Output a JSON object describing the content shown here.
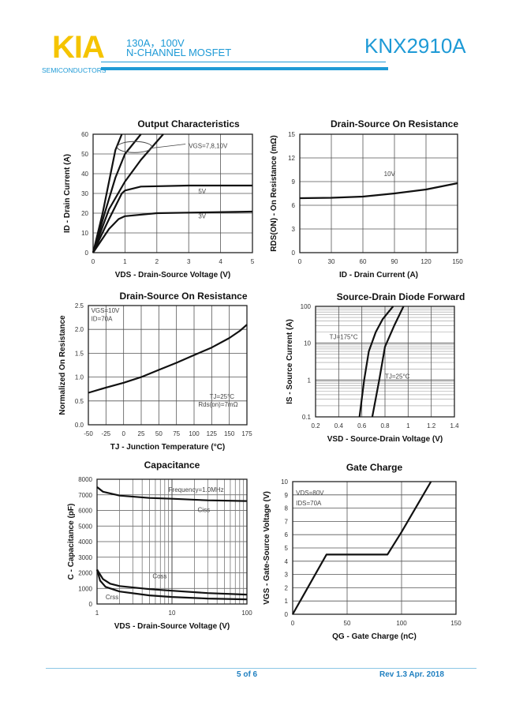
{
  "header": {
    "logo": "KIA",
    "logo_sub": "SEMICONDUCTORS",
    "spec_line1": "130A，100V",
    "spec_line2": "N-CHANNEL MOSFET",
    "part_number": "KNX2910A"
  },
  "footer": {
    "page": "5 of 6",
    "revision": "Rev 1.3 Apr. 2018"
  },
  "colors": {
    "brand_blue": "#1e9ad6",
    "brand_yellow": "#f5c400"
  },
  "chart_data": [
    {
      "type": "line",
      "title": "Output Characteristics",
      "xlabel": "VDS - Drain-Source Voltage (V)",
      "ylabel": "ID - Drain Current (A)",
      "xlim": [
        0,
        5
      ],
      "ylim": [
        0,
        60
      ],
      "xticks": [
        "0",
        "1",
        "2",
        "3",
        "4",
        "5"
      ],
      "yticks": [
        "0",
        "10",
        "20",
        "30",
        "40",
        "50",
        "60"
      ],
      "grid": true,
      "series": [
        {
          "name": "10V",
          "x": [
            0,
            0.3,
            0.5,
            0.7,
            0.9
          ],
          "y": [
            0,
            20,
            36,
            52,
            60
          ]
        },
        {
          "name": "8V",
          "x": [
            0,
            0.4,
            0.7,
            1,
            1.5
          ],
          "y": [
            0,
            22,
            38,
            50,
            60
          ]
        },
        {
          "name": "7V",
          "x": [
            0,
            0.5,
            1,
            1.5,
            2.2
          ],
          "y": [
            0,
            22,
            36,
            47,
            60
          ]
        },
        {
          "name": "5V",
          "x": [
            0,
            0.5,
            0.9,
            1,
            1.5,
            3,
            5
          ],
          "y": [
            0,
            17,
            30,
            31.5,
            33.5,
            34,
            34
          ]
        },
        {
          "name": "3V",
          "x": [
            0,
            0.5,
            0.8,
            1,
            2,
            5
          ],
          "y": [
            0,
            12,
            17,
            18.5,
            20,
            20.8
          ]
        }
      ],
      "annotations": [
        {
          "text": "VGS=7,8,10V",
          "x": 3,
          "y": 53
        },
        {
          "text": "5V",
          "x": 3.3,
          "y": 30
        },
        {
          "text": "3V",
          "x": 3.3,
          "y": 17.5
        }
      ]
    },
    {
      "type": "line",
      "title": "Drain-Source On Resistance",
      "xlabel": "ID - Drain Current (A)",
      "ylabel": "RDS(ON) - On Resistance (mΩ)",
      "xlim": [
        0,
        150
      ],
      "ylim": [
        0,
        15
      ],
      "xticks": [
        "0",
        "30",
        "60",
        "90",
        "120",
        "150"
      ],
      "yticks": [
        "0",
        "3",
        "6",
        "9",
        "12",
        "15"
      ],
      "grid": true,
      "series": [
        {
          "name": "10V",
          "x": [
            0,
            30,
            60,
            90,
            120,
            150
          ],
          "y": [
            6.9,
            6.95,
            7.1,
            7.5,
            8,
            8.8
          ]
        }
      ],
      "annotations": [
        {
          "text": "10V",
          "x": 80,
          "y": 9.7
        }
      ]
    },
    {
      "type": "line",
      "title": "Drain-Source On Resistance",
      "xlabel": "TJ - Junction Temperature (°C)",
      "ylabel": "Normalized On Resistance",
      "xlim": [
        -50,
        175
      ],
      "ylim": [
        0,
        2.5
      ],
      "xticks": [
        "-50",
        "-25",
        "0",
        "25",
        "50",
        "75",
        "100",
        "125",
        "150",
        "175"
      ],
      "yticks": [
        "0.0",
        "0.5",
        "1.0",
        "1.5",
        "2.0",
        "2.5"
      ],
      "grid": true,
      "series": [
        {
          "name": "Rds(on)",
          "x": [
            -50,
            -25,
            0,
            25,
            50,
            75,
            100,
            125,
            150,
            165,
            175
          ],
          "y": [
            0.67,
            0.78,
            0.88,
            1.0,
            1.15,
            1.3,
            1.46,
            1.62,
            1.82,
            1.97,
            2.1
          ]
        }
      ],
      "annotations": [
        {
          "text": "VGS=10V",
          "x": -46,
          "y": 2.35
        },
        {
          "text": "ID=70A",
          "x": -46,
          "y": 2.18
        },
        {
          "text": "TJ=25°C",
          "x": 122,
          "y": 0.55
        },
        {
          "text": "Rds(on)=7mΩ",
          "x": 106,
          "y": 0.38
        }
      ]
    },
    {
      "type": "line",
      "title": "Source-Drain Diode Forward",
      "xlabel": "VSD - Source-Drain Voltage (V)",
      "ylabel": "IS - Source Current (A)",
      "xlim": [
        0.2,
        1.4
      ],
      "ylim": [
        0.1,
        100
      ],
      "ylog": true,
      "xticks": [
        "0.2",
        "0.4",
        "0.6",
        "0.8",
        "1",
        "1.2",
        "1.4"
      ],
      "yticks": [
        "0.1",
        "1",
        "10",
        "100"
      ],
      "grid": true,
      "series": [
        {
          "name": "TJ=175°C",
          "x": [
            0.58,
            0.62,
            0.66,
            0.72,
            0.78,
            0.87
          ],
          "y": [
            0.1,
            1,
            6,
            20,
            45,
            100
          ]
        },
        {
          "name": "TJ=25°C",
          "x": [
            0.69,
            0.75,
            0.8,
            0.88,
            0.96
          ],
          "y": [
            0.1,
            1,
            8,
            30,
            100
          ]
        }
      ],
      "annotations": [
        {
          "text": "TJ=175°C",
          "x": 0.32,
          "y": 13
        },
        {
          "text": "TJ=25°C",
          "x": 0.8,
          "y": 1.1
        }
      ]
    },
    {
      "type": "line",
      "title": "Capacitance",
      "xlabel": "VDS - Drain-Source Voltage (V)",
      "ylabel": "C - Capacitance (pF)",
      "xlim": [
        1,
        100
      ],
      "ylim": [
        0,
        8000
      ],
      "xlog": true,
      "xticks": [
        "1",
        "10",
        "100"
      ],
      "yticks": [
        "0",
        "1000",
        "2000",
        "3000",
        "4000",
        "5000",
        "6000",
        "7000",
        "8000"
      ],
      "grid": true,
      "series": [
        {
          "name": "Ciss",
          "x": [
            1,
            1.2,
            2,
            5,
            10,
            30,
            100
          ],
          "y": [
            7500,
            7200,
            6950,
            6800,
            6750,
            6650,
            6600
          ]
        },
        {
          "name": "Coss",
          "x": [
            1,
            1.2,
            1.5,
            2,
            5,
            10,
            30,
            100
          ],
          "y": [
            2200,
            1600,
            1300,
            1150,
            950,
            850,
            700,
            600
          ]
        },
        {
          "name": "Crss",
          "x": [
            1,
            1.1,
            1.3,
            2,
            5,
            10,
            30,
            100
          ],
          "y": [
            2200,
            1500,
            1100,
            800,
            550,
            450,
            350,
            300
          ]
        }
      ],
      "annotations": [
        {
          "text": "Frequency=1.0MHz",
          "x": 9,
          "y": 7200
        },
        {
          "text": "Ciss",
          "x": 22,
          "y": 5900
        },
        {
          "text": "Coss",
          "x": 5.5,
          "y": 1650
        },
        {
          "text": "Crss",
          "x": 1.3,
          "y": 300
        }
      ]
    },
    {
      "type": "line",
      "title": "Gate Charge",
      "xlabel": "QG - Gate Charge (nC)",
      "ylabel": "VGS - Gate-Source Voltage (V)",
      "xlim": [
        0,
        150
      ],
      "ylim": [
        0,
        10
      ],
      "xticks": [
        "0",
        "50",
        "100",
        "150"
      ],
      "yticks": [
        "0",
        "1",
        "2",
        "3",
        "4",
        "5",
        "6",
        "7",
        "8",
        "9",
        "10"
      ],
      "grid": true,
      "series": [
        {
          "name": "VGS",
          "x": [
            0,
            31,
            87,
            100,
            127
          ],
          "y": [
            0,
            4.5,
            4.5,
            6.2,
            10
          ]
        }
      ],
      "annotations": [
        {
          "text": "VDS=80V",
          "x": 3,
          "y": 9
        },
        {
          "text": "IDS=70A",
          "x": 3,
          "y": 8.2
        }
      ]
    }
  ]
}
